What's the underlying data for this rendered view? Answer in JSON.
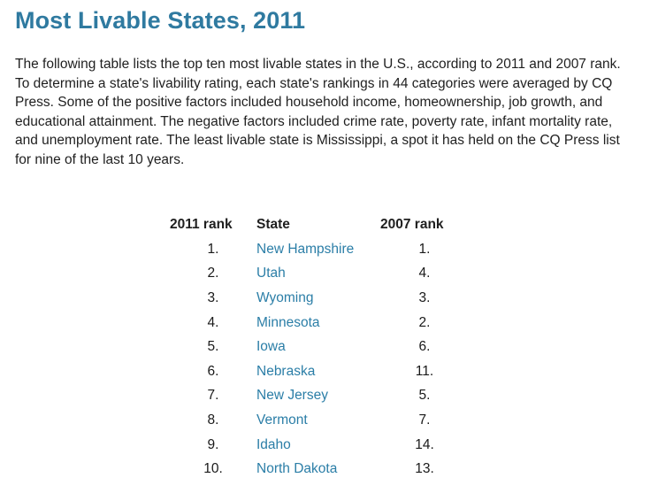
{
  "page": {
    "title": "Most Livable States, 2011",
    "intro": "The following table lists the top ten most livable states in the U.S., according to 2011 and 2007 rank. To determine a state's livability rating, each state's rankings in 44 categories were averaged by CQ Press. Some of the positive factors included household income, homeownership, job growth, and educational attainment. The negative factors included crime rate, poverty rate, infant mortality rate, and unemployment rate. The least livable state is Mississippi, a spot it has held on the CQ Press list for nine of the last 10 years."
  },
  "table": {
    "headers": {
      "rank_2011": "2011 rank",
      "state": "State",
      "rank_2007": "2007 rank"
    },
    "rows": [
      {
        "rank_2011": "1.",
        "state": "New Hampshire",
        "rank_2007": "1."
      },
      {
        "rank_2011": "2.",
        "state": "Utah",
        "rank_2007": "4."
      },
      {
        "rank_2011": "3.",
        "state": "Wyoming",
        "rank_2007": "3."
      },
      {
        "rank_2011": "4.",
        "state": "Minnesota",
        "rank_2007": "2."
      },
      {
        "rank_2011": "5.",
        "state": "Iowa",
        "rank_2007": "6."
      },
      {
        "rank_2011": "6.",
        "state": "Nebraska",
        "rank_2007": "11."
      },
      {
        "rank_2011": "7.",
        "state": "New Jersey",
        "rank_2007": "5."
      },
      {
        "rank_2011": "8.",
        "state": "Vermont",
        "rank_2007": "7."
      },
      {
        "rank_2011": "9.",
        "state": "Idaho",
        "rank_2007": "14."
      },
      {
        "rank_2011": "10.",
        "state": "North Dakota",
        "rank_2007": "13."
      }
    ]
  },
  "colors": {
    "title": "#2f7aa0",
    "link": "#2b7ea7",
    "text": "#1f1f1f"
  }
}
